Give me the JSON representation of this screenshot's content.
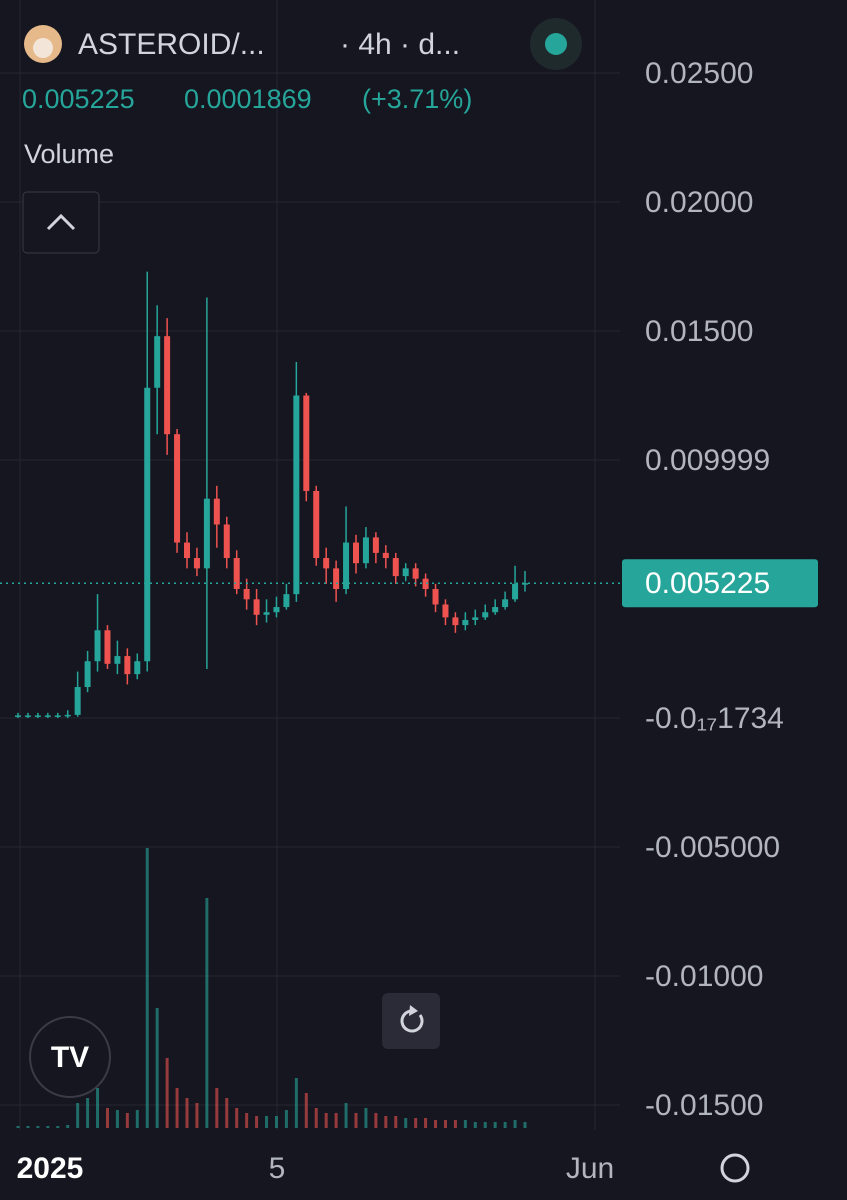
{
  "chart_data": {
    "type": "candlestick",
    "symbol": "ASTEROID/...",
    "interval": "· 4h · d...",
    "last_price": "0.005225",
    "change": "0.0001869",
    "change_pct": "(+3.71%)",
    "volume_label": "Volume",
    "x_labels": [
      "2025",
      "5",
      "Jun"
    ],
    "up_color": "#26a69a",
    "down_color": "#ef5350",
    "ylim": [
      -0.01597,
      0.02783
    ],
    "yticks": [
      {
        "value": 0.025,
        "label": "0.02500"
      },
      {
        "value": 0.02,
        "label": "0.02000"
      },
      {
        "value": 0.015,
        "label": "0.01500"
      },
      0.009999,
      {
        "value": -1.734e-18,
        "label": "-0.0₁₇1734"
      },
      {
        "value": -0.005,
        "label": "-0.005000"
      },
      {
        "value": -0.01,
        "label": "-0.01000"
      },
      {
        "value": -0.015,
        "label": "-0.01500"
      }
    ],
    "current": 0.005225,
    "open": [
      0.0001,
      0.0001,
      0.0001,
      0.0001,
      0.0001,
      0.0001,
      0.00012,
      0.0012,
      0.0022,
      0.0034,
      0.0021,
      0.0024,
      0.0017,
      0.0022,
      0.0128,
      0.0148,
      0.011,
      0.0068,
      0.0062,
      0.0058,
      0.0085,
      0.0075,
      0.0062,
      0.005,
      0.0046,
      0.004,
      0.0041,
      0.0043,
      0.0048,
      0.0125,
      0.0088,
      0.0062,
      0.0058,
      0.005,
      0.0068,
      0.006,
      0.007,
      0.0064,
      0.0062,
      0.0055,
      0.0058,
      0.0054,
      0.005,
      0.0044,
      0.0039,
      0.0036,
      0.0038,
      0.0039,
      0.0041,
      0.0043,
      0.0046,
      0.0052
    ],
    "high": [
      0.0002,
      0.0002,
      0.0002,
      0.0002,
      0.0002,
      0.0003,
      0.0018,
      0.0026,
      0.0048,
      0.0036,
      0.003,
      0.0027,
      0.0025,
      0.0173,
      0.016,
      0.0155,
      0.0112,
      0.0072,
      0.0066,
      0.0163,
      0.009,
      0.0078,
      0.0065,
      0.0054,
      0.005,
      0.0046,
      0.0047,
      0.0052,
      0.0138,
      0.0126,
      0.009,
      0.0066,
      0.0061,
      0.0082,
      0.0071,
      0.0074,
      0.0072,
      0.0067,
      0.0064,
      0.006,
      0.006,
      0.0056,
      0.0052,
      0.0046,
      0.0041,
      0.0041,
      0.0042,
      0.0044,
      0.0046,
      0.0049,
      0.0059,
      0.0057
    ],
    "low": [
      0,
      0,
      0,
      0,
      0,
      0,
      5e-05,
      0.001,
      0.0018,
      0.0019,
      0.0017,
      0.0013,
      0.0015,
      0.0018,
      0.011,
      0.0102,
      0.0064,
      0.0058,
      0.0055,
      0.0019,
      0.0066,
      0.0058,
      0.0048,
      0.0042,
      0.0036,
      0.0037,
      0.0039,
      0.0042,
      0.0045,
      0.0084,
      0.0059,
      0.0052,
      0.0045,
      0.0048,
      0.0056,
      0.0058,
      0.006,
      0.0058,
      0.0052,
      0.0053,
      0.0051,
      0.0047,
      0.0041,
      0.0036,
      0.0033,
      0.0034,
      0.0036,
      0.0038,
      0.004,
      0.0042,
      0.0045,
      0.0049
    ],
    "close": [
      0.0001,
      0.0001,
      0.0001,
      0.0001,
      0.0001,
      0.00012,
      0.0012,
      0.0022,
      0.0034,
      0.0021,
      0.0024,
      0.0017,
      0.0022,
      0.0128,
      0.0148,
      0.011,
      0.0068,
      0.0062,
      0.0058,
      0.0085,
      0.0075,
      0.0062,
      0.005,
      0.0046,
      0.004,
      0.0041,
      0.0043,
      0.0048,
      0.0125,
      0.0088,
      0.0062,
      0.0058,
      0.005,
      0.0068,
      0.006,
      0.007,
      0.0064,
      0.0062,
      0.0055,
      0.0058,
      0.0054,
      0.005,
      0.0044,
      0.0039,
      0.0036,
      0.0038,
      0.0039,
      0.0041,
      0.0043,
      0.0046,
      0.0052,
      0.005225
    ],
    "volume": [
      2,
      2,
      2,
      2,
      2,
      3,
      25,
      30,
      40,
      20,
      18,
      15,
      18,
      280,
      120,
      70,
      40,
      30,
      25,
      230,
      40,
      30,
      20,
      15,
      12,
      12,
      12,
      18,
      50,
      35,
      20,
      15,
      15,
      25,
      15,
      20,
      15,
      12,
      12,
      10,
      10,
      10,
      8,
      8,
      8,
      8,
      6,
      6,
      6,
      6,
      8,
      6
    ]
  }
}
